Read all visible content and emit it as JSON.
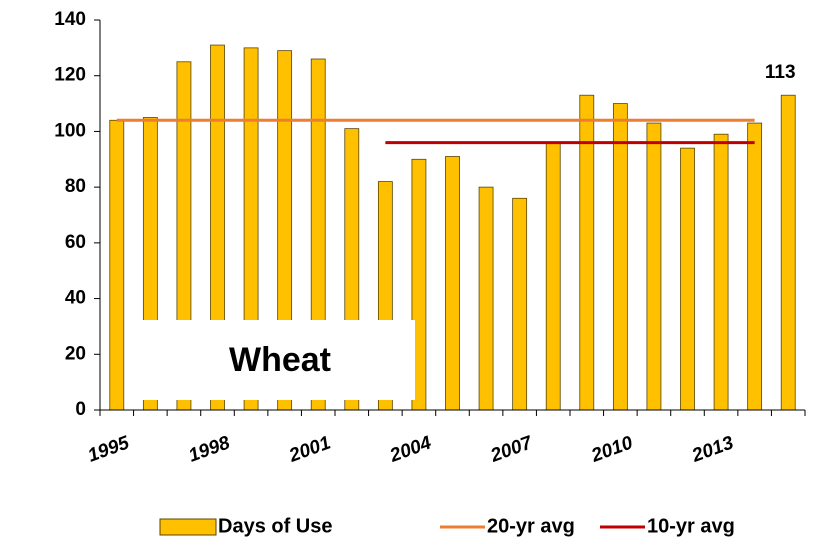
{
  "chart_data": {
    "type": "bar",
    "categories": [
      "1995",
      null,
      null,
      "1998",
      null,
      null,
      "2001",
      null,
      null,
      "2004",
      null,
      null,
      "2007",
      null,
      null,
      "2010",
      null,
      null,
      "2013",
      null,
      null
    ],
    "series": [
      {
        "name": "Days of Use",
        "type": "bar",
        "color": "#FFC000",
        "values": [
          104,
          105,
          125,
          131,
          130,
          129,
          126,
          101,
          82,
          90,
          91,
          80,
          76,
          96,
          113,
          110,
          103,
          94,
          99,
          103,
          113
        ]
      },
      {
        "name": "20-yr avg",
        "type": "line",
        "color": "#ED7D31",
        "values": [
          104,
          104,
          104,
          104,
          104,
          104,
          104,
          104,
          104,
          104,
          104,
          104,
          104,
          104,
          104,
          104,
          104,
          104,
          104,
          104,
          null
        ]
      },
      {
        "name": "10-yr avg",
        "type": "line",
        "color": "#C00000",
        "values": [
          null,
          null,
          null,
          null,
          null,
          null,
          null,
          null,
          96,
          96,
          96,
          96,
          96,
          96,
          96,
          96,
          96,
          96,
          96,
          96,
          null
        ]
      }
    ],
    "ylim": [
      0,
      140
    ],
    "yticks": [
      0,
      20,
      40,
      60,
      80,
      100,
      120,
      140
    ],
    "annotation": "Wheat",
    "legend": "bottom"
  }
}
